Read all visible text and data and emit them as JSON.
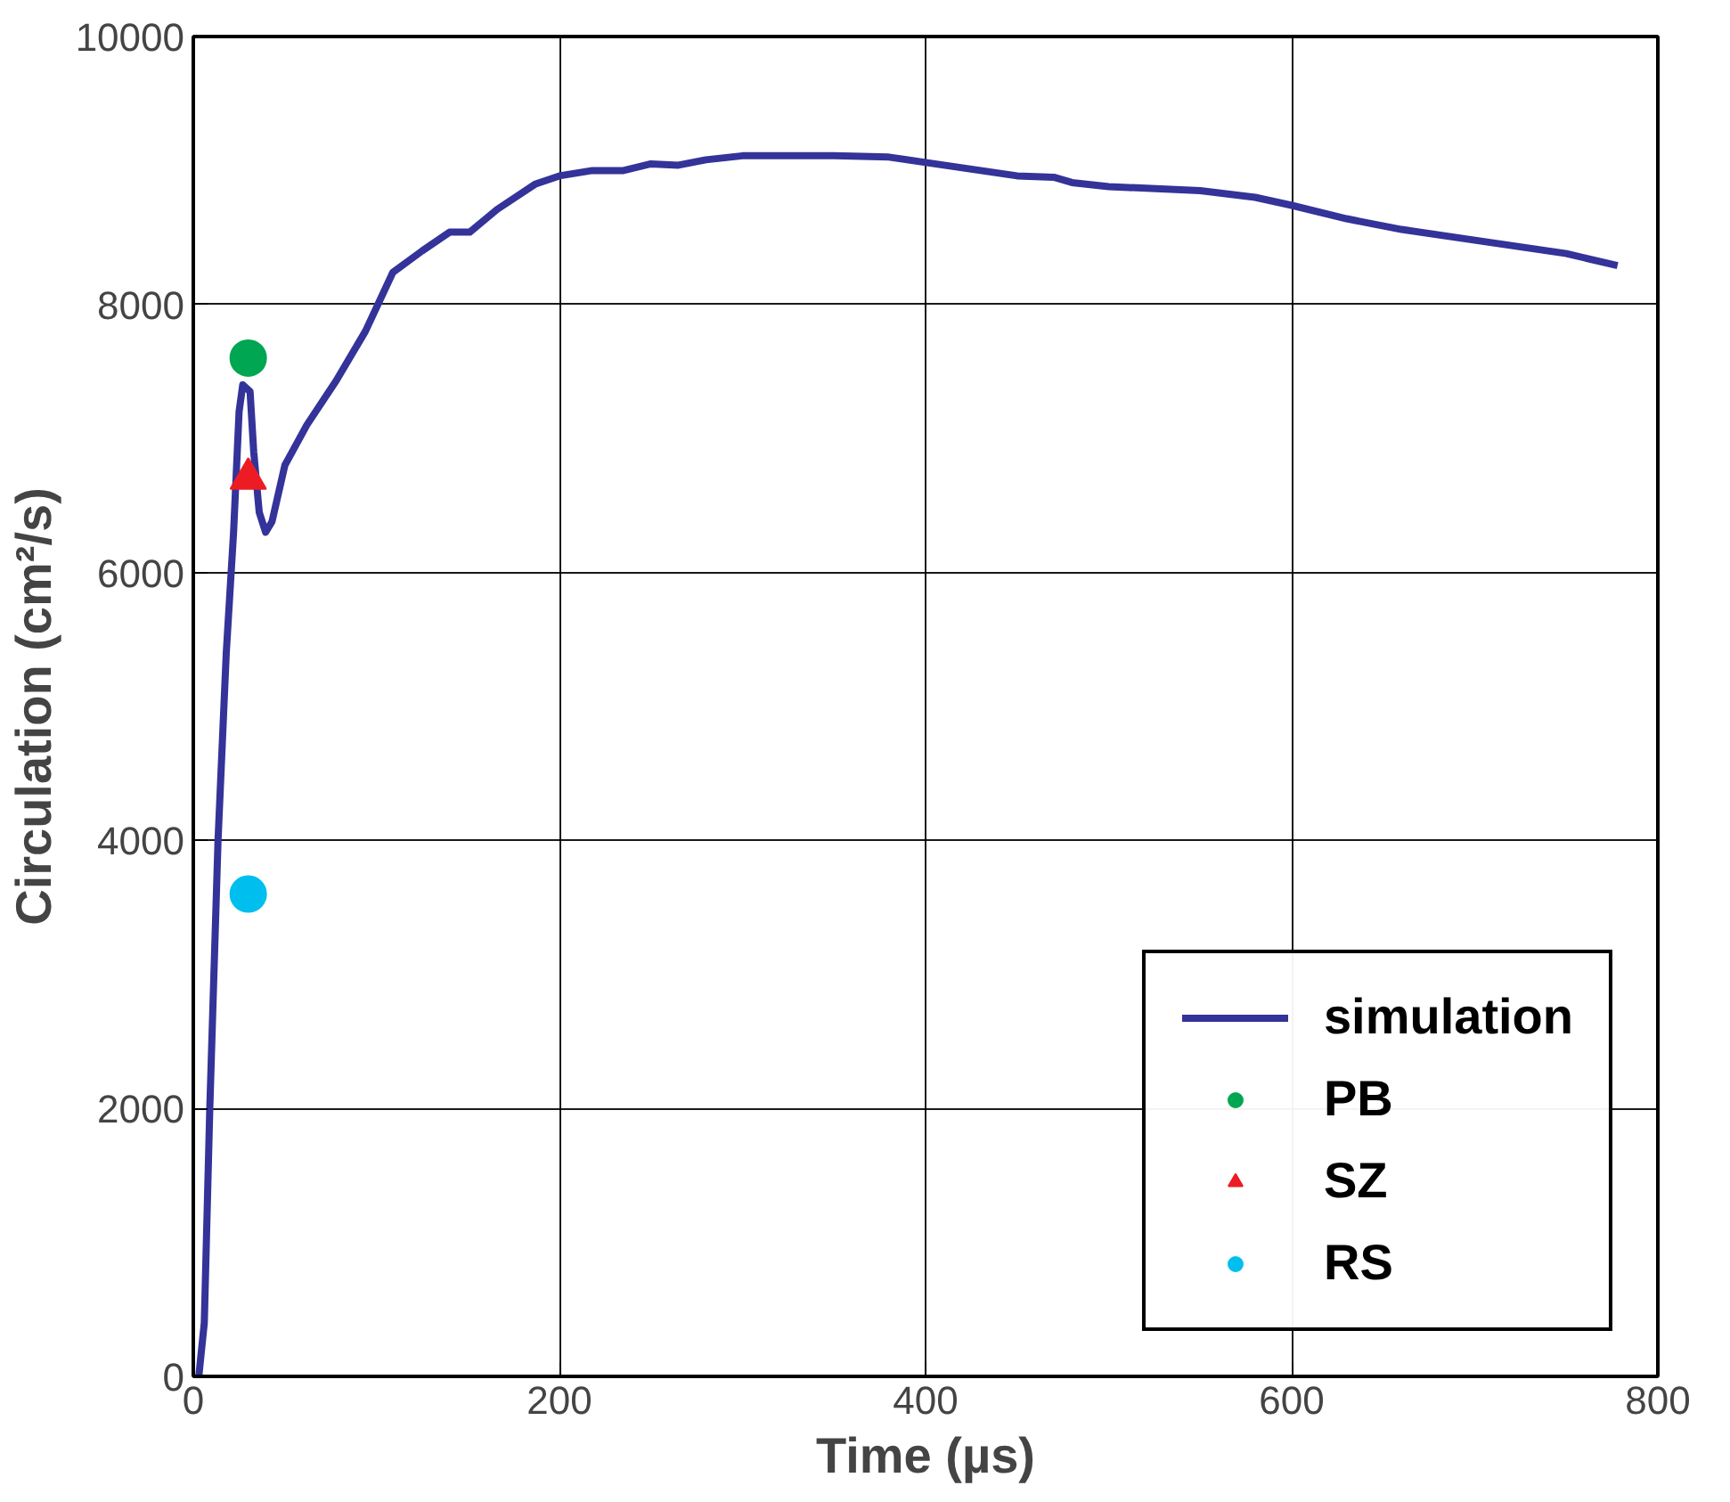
{
  "chart_data": {
    "type": "line",
    "xlabel": "Time (µs)",
    "ylabel": "Circulation (cm²/s)",
    "xlim": [
      0,
      800
    ],
    "ylim": [
      0,
      10000
    ],
    "xticks": [
      0,
      200,
      400,
      600,
      800
    ],
    "yticks": [
      0,
      2000,
      4000,
      6000,
      8000,
      10000
    ],
    "grid": true,
    "legend": "bottom right",
    "series": [
      {
        "name": "simulation",
        "color": "#333399",
        "marker": "none",
        "line_style": "solid",
        "x": [
          3,
          6,
          9,
          13.5,
          18,
          22,
          25,
          27,
          31,
          33,
          36,
          39.5,
          43,
          50,
          62,
          78,
          94,
          109,
          125,
          140,
          151,
          166,
          187,
          200,
          218,
          235,
          250,
          265,
          280,
          300,
          350,
          380,
          420,
          450,
          470,
          480,
          500,
          550,
          580,
          600,
          630,
          660,
          700,
          750,
          778
        ],
        "values": [
          0,
          400,
          2000,
          4000,
          5400,
          6300,
          7200,
          7400,
          7350,
          6900,
          6450,
          6300,
          6380,
          6800,
          7100,
          7430,
          7800,
          8240,
          8400,
          8540,
          8540,
          8710,
          8900,
          8960,
          9000,
          9000,
          9050,
          9040,
          9080,
          9110,
          9110,
          9100,
          9020,
          8960,
          8950,
          8910,
          8880,
          8850,
          8800,
          8740,
          8640,
          8560,
          8480,
          8380,
          8290
        ]
      },
      {
        "name": "PB",
        "type": "scatter",
        "color": "#00a651",
        "marker": "circle",
        "x": [
          30
        ],
        "values": [
          7600
        ]
      },
      {
        "name": "SZ",
        "type": "scatter",
        "color": "#ed1c24",
        "marker": "triangle",
        "x": [
          30
        ],
        "values": [
          6700
        ]
      },
      {
        "name": "RS",
        "type": "scatter",
        "color": "#00bfef",
        "marker": "circle",
        "x": [
          30
        ],
        "values": [
          3600
        ]
      }
    ]
  }
}
